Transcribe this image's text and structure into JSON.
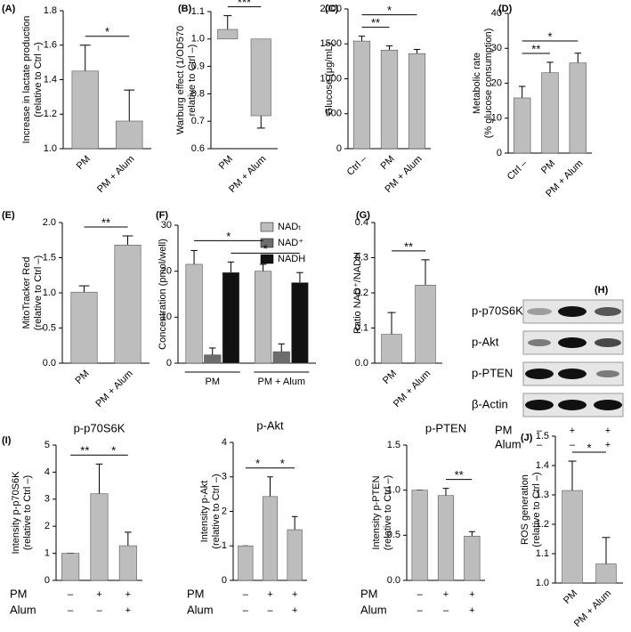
{
  "chart_data": [
    {
      "type": "bar",
      "panel": "(A)",
      "y_label": [
        "Increase in lactate production",
        "(relative to Ctrl –)"
      ],
      "categories": [
        "PM",
        "PM + Alum"
      ],
      "values": [
        1.45,
        1.16
      ],
      "errors": [
        0.15,
        0.18
      ],
      "color": "#bdbdbd",
      "ylim": [
        1.0,
        1.8
      ],
      "yticks": [
        {
          "value": 1,
          "label": "1.0"
        },
        1.2,
        1.4,
        1.6,
        1.8
      ],
      "significance": [
        {
          "from": 0,
          "to": 1,
          "label": "*"
        }
      ]
    },
    {
      "type": "bar",
      "panel": "(B)",
      "y_label": [
        "Warburg effect (1/OD570",
        "relative to Ctrl –)"
      ],
      "categories": [
        "PM",
        "PM + Alum"
      ],
      "values": [
        1.035,
        0.72
      ],
      "errors": [
        0.05,
        0.045
      ],
      "baseline": 1,
      "color": "#bdbdbd",
      "ylim": [
        0.6,
        1.1
      ],
      "yticks": [
        0.6,
        0.7,
        0.8,
        0.9,
        {
          "value": 1,
          "label": "1.0"
        },
        1.1
      ],
      "significance": [
        {
          "from": 0,
          "to": 1,
          "label": "***"
        }
      ]
    },
    {
      "type": "bar",
      "panel": "(C)",
      "y_label": [
        "Glucose (μg/mL)"
      ],
      "categories": [
        "Ctrl –",
        "PM",
        "PM + Alum"
      ],
      "values": [
        1540,
        1410,
        1360
      ],
      "errors": [
        70,
        60,
        60
      ],
      "color": "#bdbdbd",
      "ylim": [
        0,
        2000
      ],
      "yticks": [
        0,
        500,
        1000,
        1500,
        2000
      ],
      "significance": [
        {
          "from": 0,
          "to": 1,
          "label": "**"
        },
        {
          "from": 0,
          "to": 2,
          "label": "*"
        }
      ]
    },
    {
      "type": "bar",
      "panel": "(D)",
      "y_label": [
        "Metabolic rate",
        "(% glucose consumption)"
      ],
      "categories": [
        "Ctrl –",
        "PM",
        "PM + Alum"
      ],
      "values": [
        15.8,
        23,
        25.8
      ],
      "errors": [
        3.3,
        3,
        2.8
      ],
      "color": "#bdbdbd",
      "ylim": [
        0,
        40
      ],
      "yticks": [
        0,
        10,
        20,
        30,
        40
      ],
      "significance": [
        {
          "from": 0,
          "to": 1,
          "label": "**"
        },
        {
          "from": 0,
          "to": 2,
          "label": "*"
        }
      ]
    },
    {
      "type": "bar",
      "panel": "(E)",
      "y_label": [
        "MitoTracker Red",
        "(relative to Ctrl –)"
      ],
      "categories": [
        "PM",
        "PM + Alum"
      ],
      "values": [
        1.01,
        1.68
      ],
      "errors": [
        0.09,
        0.13
      ],
      "color": "#bdbdbd",
      "ylim": [
        0,
        2
      ],
      "yticks": [
        {
          "value": 0,
          "label": "0.0"
        },
        0.5,
        {
          "value": 1,
          "label": "1.0"
        },
        1.5,
        {
          "value": 2,
          "label": "2.0"
        }
      ],
      "significance": [
        {
          "from": 0,
          "to": 1,
          "label": "**"
        }
      ]
    },
    {
      "type": "grouped_bar",
      "panel": "(F)",
      "y_label": [
        "Concentration (pmol/well)"
      ],
      "groups": [
        "PM",
        "PM + Alum"
      ],
      "series": [
        {
          "name": "NADₜ",
          "color": "#bdbdbd",
          "values": [
            21.5,
            20
          ],
          "errors": [
            3,
            1.5
          ]
        },
        {
          "name": "NAD⁺",
          "color": "#6d6d6d",
          "values": [
            1.8,
            2.5
          ],
          "errors": [
            1.5,
            1.7
          ]
        },
        {
          "name": "NADH",
          "color": "#111111",
          "values": [
            19.7,
            17.5
          ],
          "errors": [
            2.3,
            2.2
          ]
        }
      ],
      "legend": "upper right",
      "ylim": [
        0,
        30
      ],
      "yticks": [
        0,
        10,
        20,
        30
      ],
      "significance": [
        {
          "from": [
            0,
            2
          ],
          "to": [
            1,
            2
          ],
          "label": "*"
        },
        {
          "from": [
            0,
            0
          ],
          "to": [
            1,
            0
          ],
          "label": "*"
        }
      ]
    },
    {
      "type": "bar",
      "panel": "(G)",
      "y_label": [
        "Ratio NAD⁺/NADH"
      ],
      "categories": [
        "PM",
        "PM + Alum"
      ],
      "values": [
        0.082,
        0.222
      ],
      "errors": [
        0.062,
        0.072
      ],
      "color": "#bdbdbd",
      "ylim": [
        0,
        0.4
      ],
      "yticks": [
        {
          "value": 0,
          "label": "0.0"
        },
        0.1,
        0.2,
        0.3,
        0.4
      ],
      "significance": [
        {
          "from": 0,
          "to": 1,
          "label": "**"
        }
      ]
    },
    {
      "type": "bar",
      "panel": "(I)",
      "title": "p-p70S6K",
      "y_label": [
        "Intensity p-p70S6K",
        "(relative to Ctrl –)"
      ],
      "categories": [
        null,
        null,
        null
      ],
      "values": [
        1,
        3.2,
        1.28
      ],
      "errors": [
        0,
        1.1,
        0.5
      ],
      "color": "#bdbdbd",
      "ylim": [
        0,
        5
      ],
      "yticks": [
        0,
        1,
        2,
        3,
        4,
        5
      ],
      "significance": [
        {
          "from": 0,
          "to": 1,
          "label": "**"
        },
        {
          "from": 1,
          "to": 2,
          "label": "*"
        }
      ],
      "conditions": [
        {
          "name": "PM",
          "marks": [
            "–",
            "+",
            "+"
          ]
        },
        {
          "name": "Alum",
          "marks": [
            "–",
            "–",
            "+"
          ]
        }
      ]
    },
    {
      "type": "bar",
      "title": "p-Akt",
      "y_label": [
        "Intensity p-Akt",
        "(relative to Ctrl –)"
      ],
      "categories": [
        null,
        null,
        null
      ],
      "values": [
        1,
        2.43,
        1.47
      ],
      "errors": [
        0,
        0.57,
        0.38
      ],
      "color": "#bdbdbd",
      "ylim": [
        0,
        4
      ],
      "yticks": [
        0,
        1,
        2,
        3,
        4
      ],
      "significance": [
        {
          "from": 0,
          "to": 1,
          "label": "*"
        },
        {
          "from": 1,
          "to": 2,
          "label": "*"
        }
      ],
      "conditions": [
        {
          "name": "PM",
          "marks": [
            "–",
            "+",
            "+"
          ]
        },
        {
          "name": "Alum",
          "marks": [
            "–",
            "–",
            "+"
          ]
        }
      ]
    },
    {
      "type": "bar",
      "title": "p-PTEN",
      "y_label": [
        "Intensity p-PTEN",
        "(relative to Ctrl –)"
      ],
      "categories": [
        null,
        null,
        null
      ],
      "values": [
        1,
        0.94,
        0.49
      ],
      "errors": [
        0,
        0.08,
        0.05
      ],
      "color": "#bdbdbd",
      "ylim": [
        0,
        1.5
      ],
      "yticks": [
        {
          "value": 0,
          "label": "0.0"
        },
        0.5,
        {
          "value": 1,
          "label": "1.0"
        },
        1.5
      ],
      "significance": [
        {
          "from": 1,
          "to": 2,
          "label": "**"
        }
      ],
      "conditions": [
        {
          "name": "PM",
          "marks": [
            "–",
            "+",
            "+"
          ]
        },
        {
          "name": "Alum",
          "marks": [
            "–",
            "–",
            "+"
          ]
        }
      ]
    },
    {
      "type": "bar",
      "panel": "(J)",
      "y_label": [
        "ROS generation",
        "(relative to Ctrl –)"
      ],
      "categories": [
        "PM",
        "PM + Alum"
      ],
      "values": [
        1.315,
        1.065
      ],
      "errors": [
        0.1,
        0.09
      ],
      "color": "#bdbdbd",
      "ylim": [
        1.0,
        1.5
      ],
      "yticks": [
        {
          "value": 1,
          "label": "1.0"
        },
        1.1,
        1.2,
        1.3,
        1.4,
        1.5
      ],
      "significance": [
        {
          "from": 0,
          "to": 1,
          "label": "*"
        }
      ]
    }
  ],
  "blot": {
    "panel": "(H)",
    "rows": [
      "p-p70S6K",
      "p-Akt",
      "p-PTEN",
      "β-Actin"
    ],
    "conditions": [
      {
        "name": "PM",
        "marks": [
          "–",
          "+",
          "+"
        ]
      },
      {
        "name": "Alum",
        "marks": [
          "–",
          "–",
          "+"
        ]
      }
    ]
  }
}
